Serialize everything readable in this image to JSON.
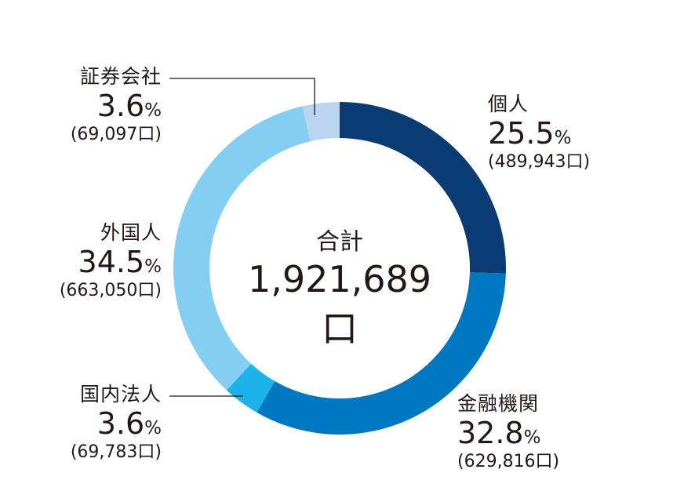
{
  "chart_data": {
    "type": "pie",
    "total_label": "合計",
    "total_value": "1,921,689口",
    "slices": [
      {
        "name": "個人",
        "percent": "25.5",
        "count": "(489,943口)",
        "value": 25.5,
        "color": "#0b3b73"
      },
      {
        "name": "金融機関",
        "percent": "32.8",
        "count": "(629,816口)",
        "value": 32.8,
        "color": "#0078c1"
      },
      {
        "name": "国内法人",
        "percent": "3.6",
        "count": "(69,783口)",
        "value": 3.6,
        "color": "#1db3ea"
      },
      {
        "name": "外国人",
        "percent": "34.5",
        "count": "(663,050口)",
        "value": 34.5,
        "color": "#84cef2"
      },
      {
        "name": "証券会社",
        "percent": "3.6",
        "count": "(69,097口)",
        "value": 3.6,
        "color": "#bcd5ee"
      }
    ],
    "percent_unit": "%"
  }
}
